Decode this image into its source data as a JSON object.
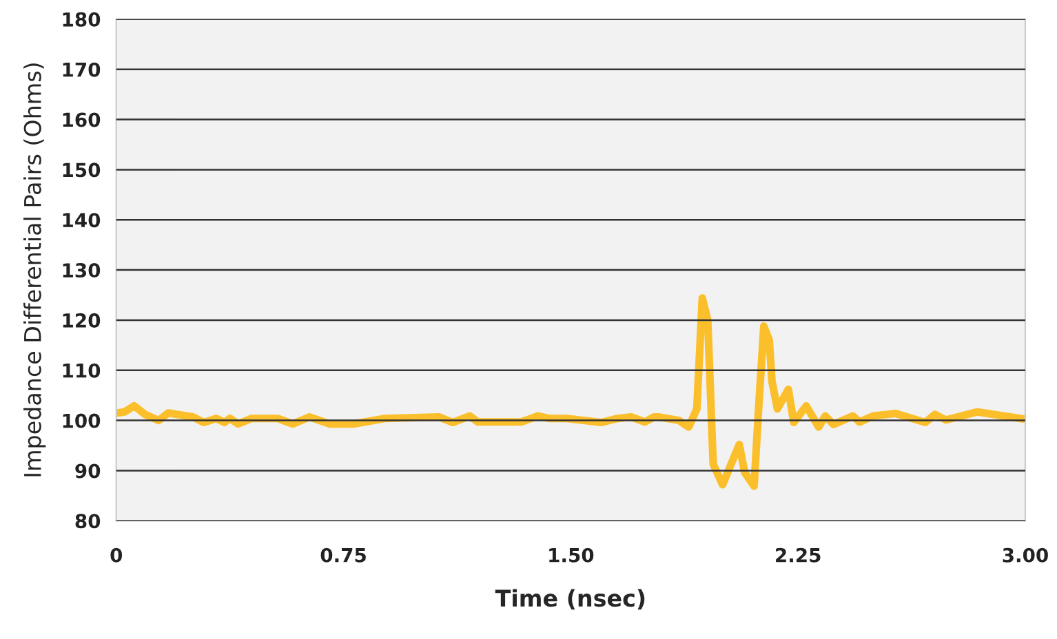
{
  "chart_data": {
    "type": "line",
    "xlabel": "Time (nsec)",
    "ylabel": "Impedance Differential Pairs (Ohms)",
    "x": [
      0.005,
      0.027,
      0.059,
      0.095,
      0.14,
      0.172,
      0.253,
      0.289,
      0.33,
      0.357,
      0.375,
      0.402,
      0.447,
      0.533,
      0.583,
      0.637,
      0.705,
      0.782,
      0.886,
      1.066,
      1.111,
      1.166,
      1.193,
      1.337,
      1.392,
      1.428,
      1.487,
      1.6,
      1.654,
      1.699,
      1.744,
      1.775,
      1.789,
      1.857,
      1.889,
      1.916,
      1.934,
      1.952,
      1.97,
      2.001,
      2.056,
      2.074,
      2.105,
      2.119,
      2.137,
      2.155,
      2.164,
      2.182,
      2.218,
      2.236,
      2.277,
      2.318,
      2.34,
      2.367,
      2.431,
      2.453,
      2.498,
      2.571,
      2.67,
      2.702,
      2.738,
      2.842,
      2.995
    ],
    "series": [
      {
        "color": "#fcbf2c",
        "values": [
          101.5,
          101.7,
          102.9,
          101.2,
          100,
          101.5,
          100.7,
          99.6,
          100.4,
          99.6,
          100.4,
          99.3,
          100.4,
          100.4,
          99.3,
          100.7,
          99.3,
          99.3,
          100.4,
          100.7,
          99.6,
          100.9,
          99.7,
          99.7,
          100.9,
          100.4,
          100.4,
          99.6,
          100.4,
          100.7,
          99.7,
          100.7,
          100.7,
          100,
          98.7,
          102.3,
          124.4,
          120,
          91.3,
          87.2,
          95.2,
          89.6,
          86.9,
          101.5,
          118.8,
          116,
          107.8,
          102.3,
          106.2,
          99.6,
          102.9,
          98.7,
          100.9,
          99.2,
          100.9,
          99.7,
          100.9,
          101.4,
          99.6,
          101.2,
          100.1,
          101.7,
          100.3
        ]
      }
    ],
    "xlim": [
      0,
      3
    ],
    "xticks": [
      0,
      {
        "value": 0.75,
        "label": "0.75"
      },
      {
        "value": 1.5,
        "label": "1.50"
      },
      {
        "value": 2.25,
        "label": "2.25"
      },
      {
        "value": 3,
        "label": "3.00"
      }
    ],
    "ylim": [
      80,
      180
    ],
    "yticks": [
      80,
      90,
      100,
      110,
      120,
      130,
      140,
      150,
      160,
      170,
      180
    ],
    "grid": "y",
    "marker": "none",
    "line_style": "solid"
  }
}
